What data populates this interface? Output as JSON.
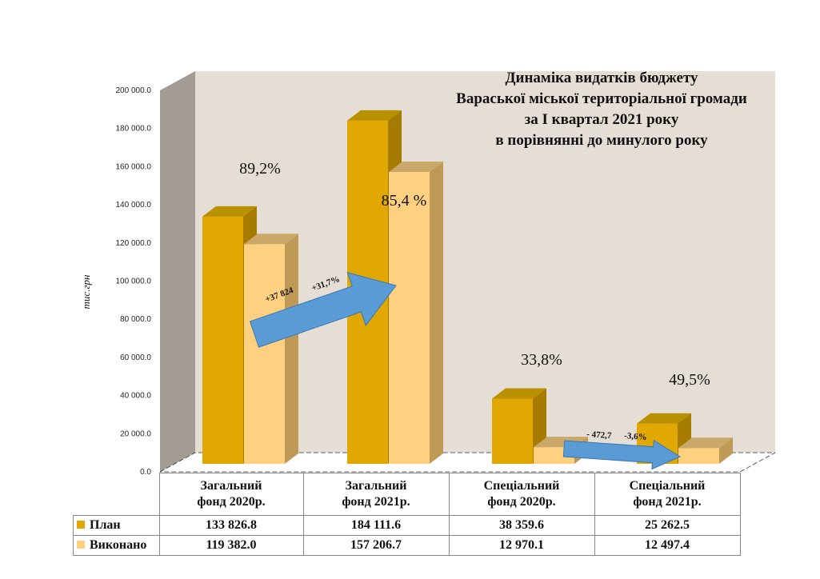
{
  "colors": {
    "plan": "#E0A800",
    "plan_side": "#A67C00",
    "plan_top": "#B89000",
    "done": "#FFD080",
    "done_side": "#BF9A56",
    "done_top": "#C9A86A",
    "backwall": "#E4DED4",
    "leftwall": "#A29C94",
    "arrow": "#5B9BD5"
  },
  "chart_data": {
    "type": "bar",
    "title": [
      "Динаміка видатків бюджету",
      "Вараської міської територіальної громади",
      "за І квартал 2021 року",
      "в порівнянні до минулого року"
    ],
    "ylabel": "тис.грн",
    "ylim": [
      0,
      200000
    ],
    "yticks": [
      "0.0",
      "20 000.0",
      "40 000.0",
      "60 000.0",
      "80 000.0",
      "100 000.0",
      "120 000.0",
      "140 000.0",
      "160 000.0",
      "180 000.0",
      "200 000.0"
    ],
    "categories": [
      [
        "Загальний",
        "фонд 2020р."
      ],
      [
        "Загальний",
        "фонд 2021р."
      ],
      [
        "Спеціальний",
        "фонд 2020р."
      ],
      [
        "Спеціальний",
        "фонд 2021р."
      ]
    ],
    "series": [
      {
        "name": "План",
        "values": [
          133826.8,
          184111.6,
          38359.6,
          25262.5
        ],
        "labels": [
          "133 826.8",
          "184 111.6",
          "38 359.6",
          "25 262.5"
        ]
      },
      {
        "name": "Виконано",
        "values": [
          119382.0,
          157206.7,
          12970.1,
          12497.4
        ],
        "labels": [
          "119 382.0",
          "157 206.7",
          "12 970.1",
          "12 497.4"
        ]
      }
    ],
    "annotations": {
      "percent": [
        "89,2%",
        "85,4 %",
        "33,8%",
        "49,5%"
      ],
      "arrow1": [
        "+37 824",
        "+31,7%"
      ],
      "arrow2": [
        "- 472,7",
        "-3,6%"
      ]
    },
    "grid": false,
    "legend": "table-bottom"
  }
}
